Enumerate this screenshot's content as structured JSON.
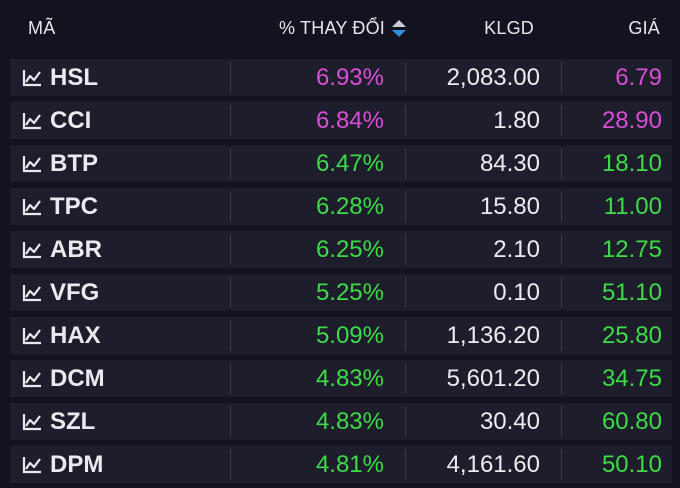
{
  "header": {
    "code": "MÃ",
    "change": "% THAY ĐỔI",
    "volume": "KLGD",
    "price": "GIÁ"
  },
  "colors": {
    "ceiling": "#d94ed6",
    "up": "#3ddc46",
    "background": "#131320",
    "row_band": "#1d1d2c",
    "sort_active": "#2e8fe0"
  },
  "icons": {
    "row_icon": "line-chart-icon",
    "sort": "sort-arrows-icon"
  },
  "rows": [
    {
      "code": "HSL",
      "change": "6.93%",
      "volume": "2,083.00",
      "price": "6.79",
      "status": "ceiling"
    },
    {
      "code": "CCI",
      "change": "6.84%",
      "volume": "1.80",
      "price": "28.90",
      "status": "ceiling"
    },
    {
      "code": "BTP",
      "change": "6.47%",
      "volume": "84.30",
      "price": "18.10",
      "status": "up"
    },
    {
      "code": "TPC",
      "change": "6.28%",
      "volume": "15.80",
      "price": "11.00",
      "status": "up"
    },
    {
      "code": "ABR",
      "change": "6.25%",
      "volume": "2.10",
      "price": "12.75",
      "status": "up"
    },
    {
      "code": "VFG",
      "change": "5.25%",
      "volume": "0.10",
      "price": "51.10",
      "status": "up"
    },
    {
      "code": "HAX",
      "change": "5.09%",
      "volume": "1,136.20",
      "price": "25.80",
      "status": "up"
    },
    {
      "code": "DCM",
      "change": "4.83%",
      "volume": "5,601.20",
      "price": "34.75",
      "status": "up"
    },
    {
      "code": "SZL",
      "change": "4.83%",
      "volume": "30.40",
      "price": "60.80",
      "status": "up"
    },
    {
      "code": "DPM",
      "change": "4.81%",
      "volume": "4,161.60",
      "price": "50.10",
      "status": "up"
    }
  ]
}
